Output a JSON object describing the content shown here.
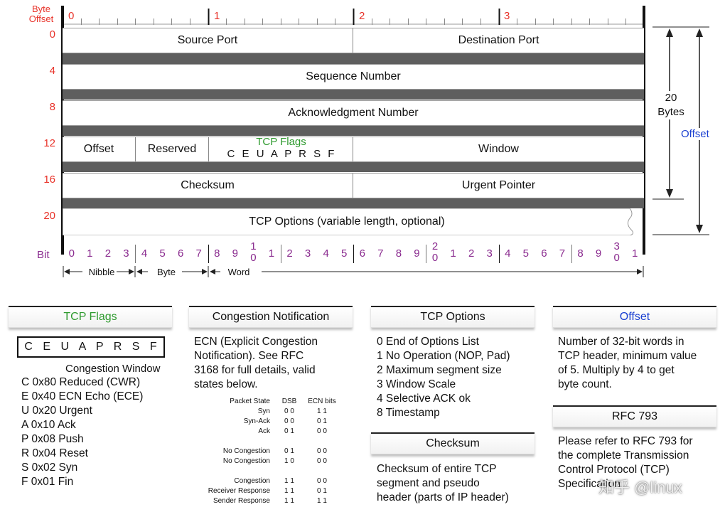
{
  "header": {
    "byte_offset_label_1": "Byte",
    "byte_offset_label_2": "Offset",
    "byte_marks": [
      "0",
      "1",
      "2",
      "3"
    ],
    "bit_label": "Bit"
  },
  "rows": [
    {
      "offset": "0",
      "fields": [
        "Source Port",
        "Destination Port"
      ]
    },
    {
      "offset": "4",
      "fields": [
        "Sequence Number"
      ]
    },
    {
      "offset": "8",
      "fields": [
        "Acknowledgment Number"
      ]
    },
    {
      "offset": "12",
      "fields": [
        "Offset",
        "Reserved",
        "TCP Flags",
        "Window"
      ],
      "flags_letters": "C E U A P R S F"
    },
    {
      "offset": "16",
      "fields": [
        "Checksum",
        "Urgent Pointer"
      ]
    },
    {
      "offset": "20",
      "fields": [
        "TCP Options (variable length, optional)"
      ]
    }
  ],
  "right_annotations": {
    "bytes_num": "20",
    "bytes_word": "Bytes",
    "offset": "Offset"
  },
  "bits": [
    "0",
    "1",
    "2",
    "3",
    "4",
    "5",
    "6",
    "7",
    "8",
    "9",
    "1",
    "0",
    "1",
    "2",
    "3",
    "4",
    "5",
    "6",
    "7",
    "8",
    "9",
    "2",
    "0",
    "1",
    "2",
    "3",
    "4",
    "5",
    "6",
    "7",
    "8",
    "9",
    "3",
    "0",
    "1"
  ],
  "bits_plain": [
    "0",
    "1",
    "2",
    "3",
    "4",
    "5",
    "6",
    "7",
    "8",
    "9",
    "",
    "1",
    "2",
    "3",
    "4",
    "5",
    "6",
    "7",
    "8",
    "9",
    "",
    "1",
    "2",
    "3",
    "4",
    "5",
    "6",
    "7",
    "8",
    "9",
    "",
    "1"
  ],
  "bit_tens": [
    "1",
    "2",
    "3"
  ],
  "bit_tens_under": [
    "0",
    "0",
    "0"
  ],
  "units": [
    "Nibble",
    "Byte",
    "Word"
  ],
  "panels": {
    "flags": {
      "title": "TCP Flags",
      "letters": "C E U A P R S F",
      "subtitle": "Congestion Window",
      "lines": [
        "C 0x80 Reduced (CWR)",
        "E 0x40 ECN Echo (ECE)",
        "U 0x20 Urgent",
        "A 0x10 Ack",
        "P 0x08 Push",
        "R 0x04 Reset",
        "S 0x02 Syn",
        "F 0x01 Fin"
      ]
    },
    "congestion": {
      "title": "Congestion Notification",
      "lines": [
        "ECN (Explicit Congestion",
        "Notification).  See RFC",
        "3168 for full details, valid",
        "states below."
      ],
      "table_headers": [
        "Packet State",
        "DSB",
        "ECN bits"
      ],
      "table_rows": [
        [
          "Syn",
          "0 0",
          "1 1"
        ],
        [
          "Syn-Ack",
          "0 0",
          "0 1"
        ],
        [
          "Ack",
          "0 1",
          "0 0"
        ],
        [
          "",
          "",
          ""
        ],
        [
          "No Congestion",
          "0 1",
          "0 0"
        ],
        [
          "No Congestion",
          "1 0",
          "0 0"
        ],
        [
          "",
          "",
          ""
        ],
        [
          "Congestion",
          "1 1",
          "0 0"
        ],
        [
          "Receiver Response",
          "1 1",
          "0 1"
        ],
        [
          "Sender Response",
          "1 1",
          "1 1"
        ]
      ]
    },
    "options": {
      "title": "TCP Options",
      "lines": [
        "0 End of Options List",
        "1 No Operation (NOP, Pad)",
        "2 Maximum segment size",
        "3 Window Scale",
        "4 Selective ACK ok",
        "8 Timestamp"
      ]
    },
    "checksum": {
      "title": "Checksum",
      "lines": [
        "Checksum of entire TCP",
        "segment and pseudo",
        "header (parts of IP header)"
      ]
    },
    "offset": {
      "title": "Offset",
      "lines": [
        "Number of 32-bit words in",
        "TCP header, minimum value",
        "of 5.  Multiply by 4 to get",
        "byte count."
      ]
    },
    "rfc": {
      "title": "RFC 793",
      "lines": [
        "Please refer to RFC 793 for",
        "the complete Transmission",
        "Control Protocol (TCP)",
        "Specification."
      ]
    }
  },
  "watermark": "知乎 @linux",
  "colors": {
    "offset_labels": "#e8332a",
    "bit_numbers": "#8a2b8f",
    "offset_field": "#1a3fd1",
    "flags_title": "#2e9a2e"
  }
}
